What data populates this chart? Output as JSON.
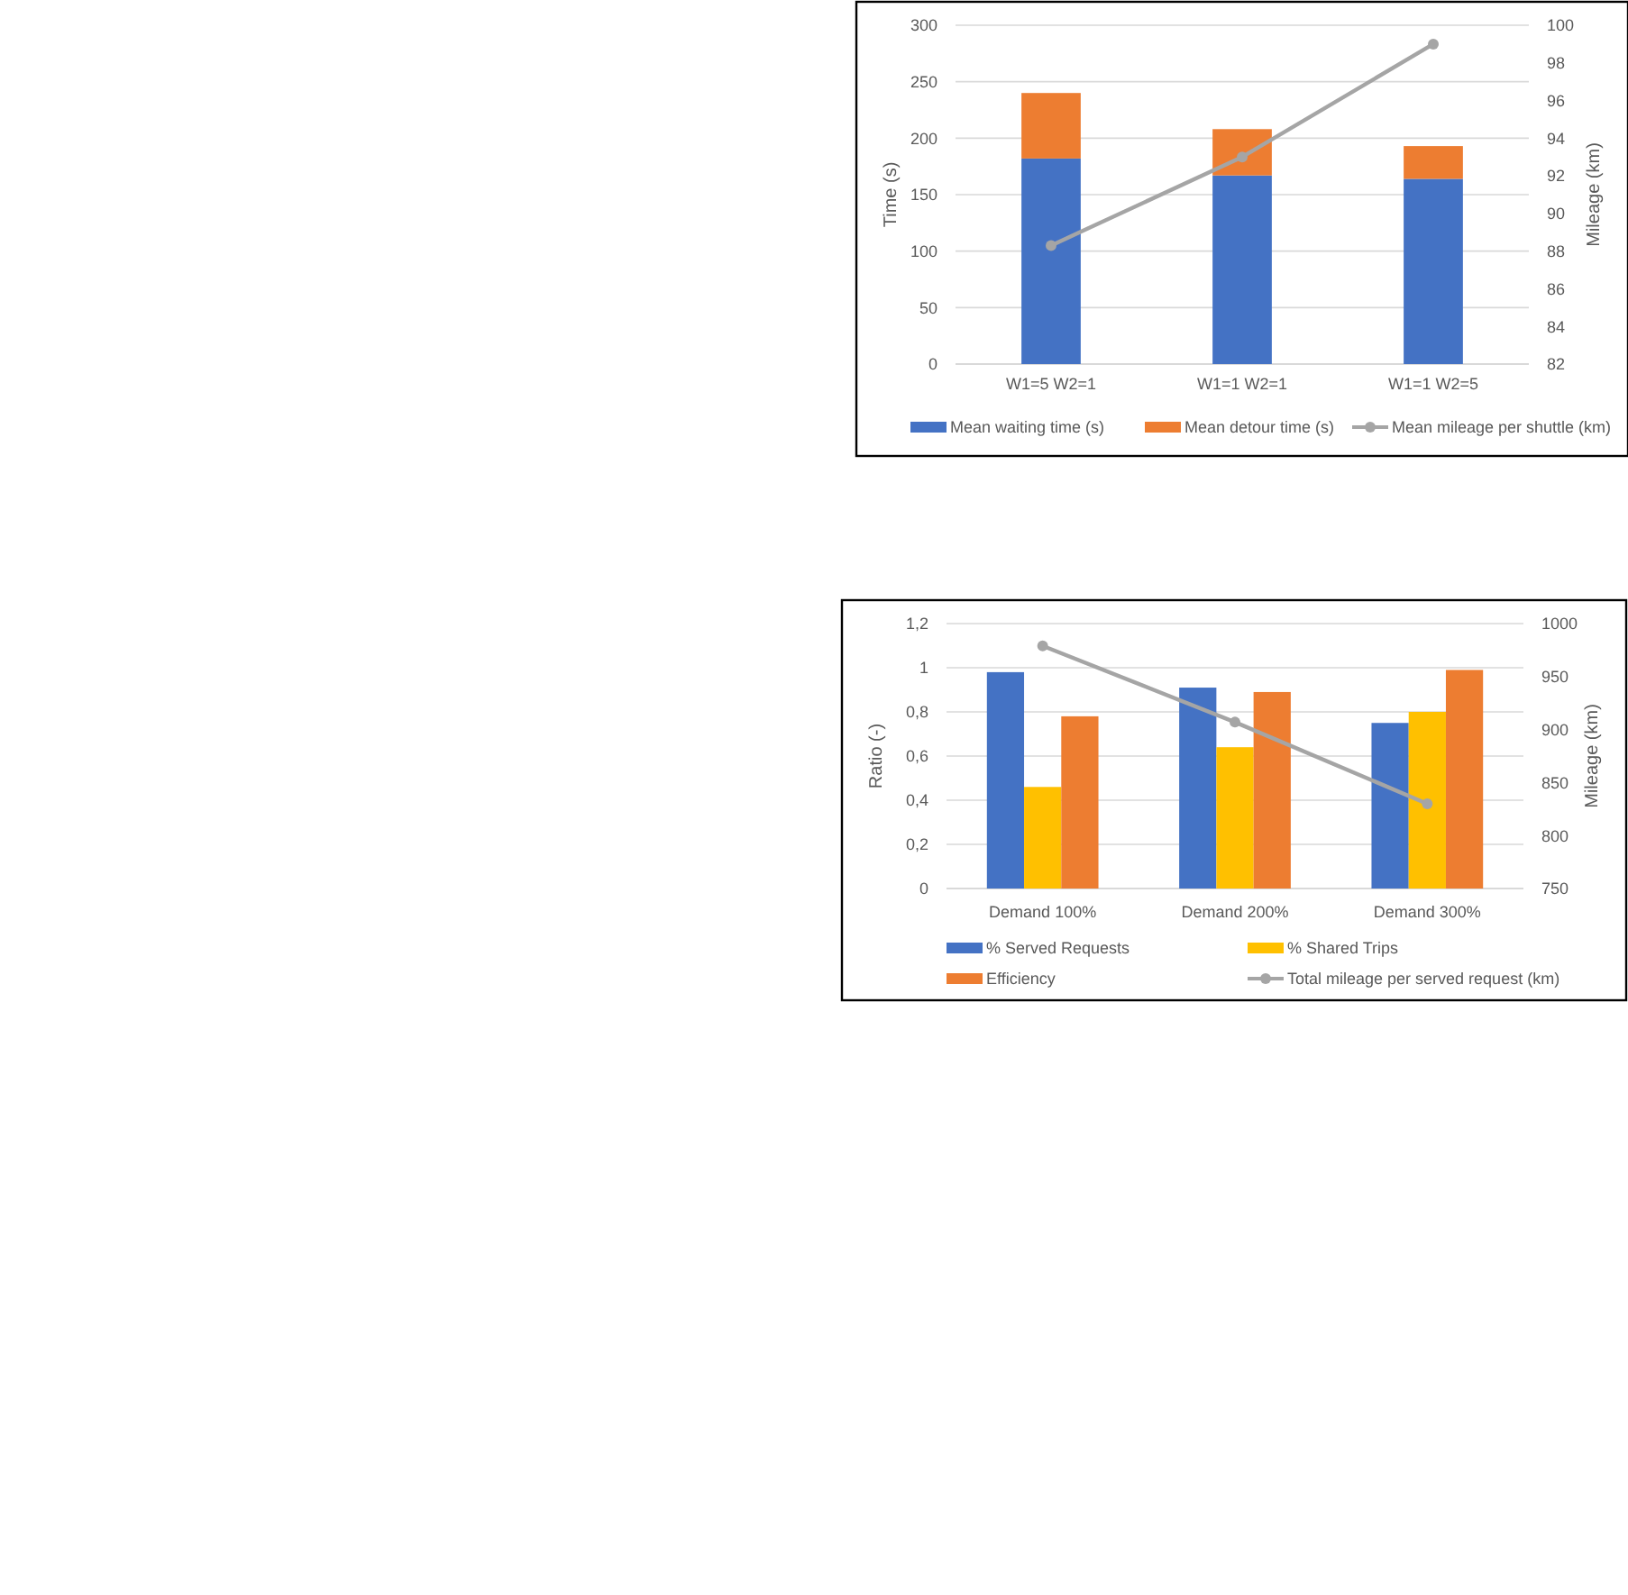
{
  "chart_data": [
    {
      "type": "bar",
      "stacked": true,
      "categories": [
        "W1=5 W2=1",
        "W1=1 W2=1",
        "W1=1 W2=5"
      ],
      "ylabel": "Time (s)",
      "y2label": "Mileage (km)",
      "series": [
        {
          "name": "Mean waiting time (s)",
          "color": "#4472c4",
          "values": [
            182,
            167,
            164
          ]
        },
        {
          "name": "Mean detour time (s)",
          "color": "#ed7d31",
          "values": [
            58,
            41,
            29
          ]
        },
        {
          "name": "Mean mileage per shuttle (km)",
          "type": "line",
          "axis": "y2",
          "color": "#a5a5a5",
          "values": [
            88.3,
            93,
            99
          ]
        }
      ],
      "ylim": [
        0,
        300
      ],
      "yticks": [
        0,
        50,
        100,
        150,
        200,
        250,
        300
      ],
      "y2lim": [
        82,
        100
      ],
      "y2ticks": [
        82,
        84,
        86,
        88,
        90,
        92,
        94,
        96,
        98,
        100
      ],
      "grid": "y",
      "legend": "bottom",
      "marker": "circle"
    },
    {
      "type": "bar",
      "categories": [
        "Demand 100%",
        "Demand 200%",
        "Demand 300%"
      ],
      "ylabel": "Ratio (-)",
      "y2label": "Mileage (km)",
      "series": [
        {
          "name": "% Served Requests",
          "color": "#4472c4",
          "values": [
            0.98,
            0.91,
            0.75
          ]
        },
        {
          "name": "% Shared Trips",
          "color": "#ffc000",
          "values": [
            0.46,
            0.64,
            0.8
          ]
        },
        {
          "name": "Efficiency",
          "color": "#ed7d31",
          "values": [
            0.78,
            0.89,
            0.99
          ]
        },
        {
          "name": "Total mileage per served request (km)",
          "type": "line",
          "axis": "y2",
          "color": "#a5a5a5",
          "values": [
            979,
            907,
            830
          ]
        }
      ],
      "ylim": [
        0,
        1.2
      ],
      "yticks": [
        0,
        {
          "value": 0.2,
          "label": "0,2"
        },
        {
          "value": 0.4,
          "label": "0,4"
        },
        {
          "value": 0.6,
          "label": "0,6"
        },
        {
          "value": 0.8,
          "label": "0,8"
        },
        1,
        {
          "value": 1.2,
          "label": "1,2"
        }
      ],
      "y2lim": [
        750,
        1000
      ],
      "y2ticks": [
        750,
        800,
        850,
        900,
        950,
        1000
      ],
      "grid": "y",
      "legend": "bottom",
      "marker": "circle"
    }
  ]
}
